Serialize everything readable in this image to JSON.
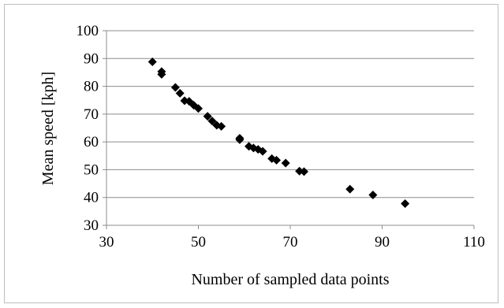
{
  "chart_data": {
    "type": "scatter",
    "title": "",
    "xlabel": "Number of sampled data points",
    "ylabel": "Mean speed [kph]",
    "xlim": [
      30,
      110
    ],
    "ylim": [
      30,
      100
    ],
    "x_ticks": [
      30,
      50,
      70,
      90,
      110
    ],
    "y_ticks": [
      30,
      40,
      50,
      60,
      70,
      80,
      90,
      100
    ],
    "grid": "horizontal",
    "legend": "none",
    "marker": "diamond",
    "marker_color": "#000000",
    "series": [
      {
        "points": [
          [
            40,
            88.8
          ],
          [
            42,
            85.3
          ],
          [
            42,
            84.3
          ],
          [
            45,
            79.6
          ],
          [
            46,
            77.5
          ],
          [
            47,
            74.8
          ],
          [
            48,
            74.6
          ],
          [
            49,
            73.2
          ],
          [
            50,
            72.0
          ],
          [
            52,
            69.2
          ],
          [
            53,
            67.5
          ],
          [
            54,
            66.0
          ],
          [
            55,
            65.6
          ],
          [
            59,
            61.3
          ],
          [
            59,
            60.8
          ],
          [
            61,
            58.4
          ],
          [
            62,
            57.8
          ],
          [
            63,
            57.3
          ],
          [
            64,
            56.6
          ],
          [
            66,
            54.0
          ],
          [
            67,
            53.4
          ],
          [
            69,
            52.4
          ],
          [
            72,
            49.5
          ],
          [
            73,
            49.3
          ],
          [
            83,
            43.0
          ],
          [
            88,
            40.9
          ],
          [
            95,
            37.8
          ]
        ]
      }
    ]
  }
}
